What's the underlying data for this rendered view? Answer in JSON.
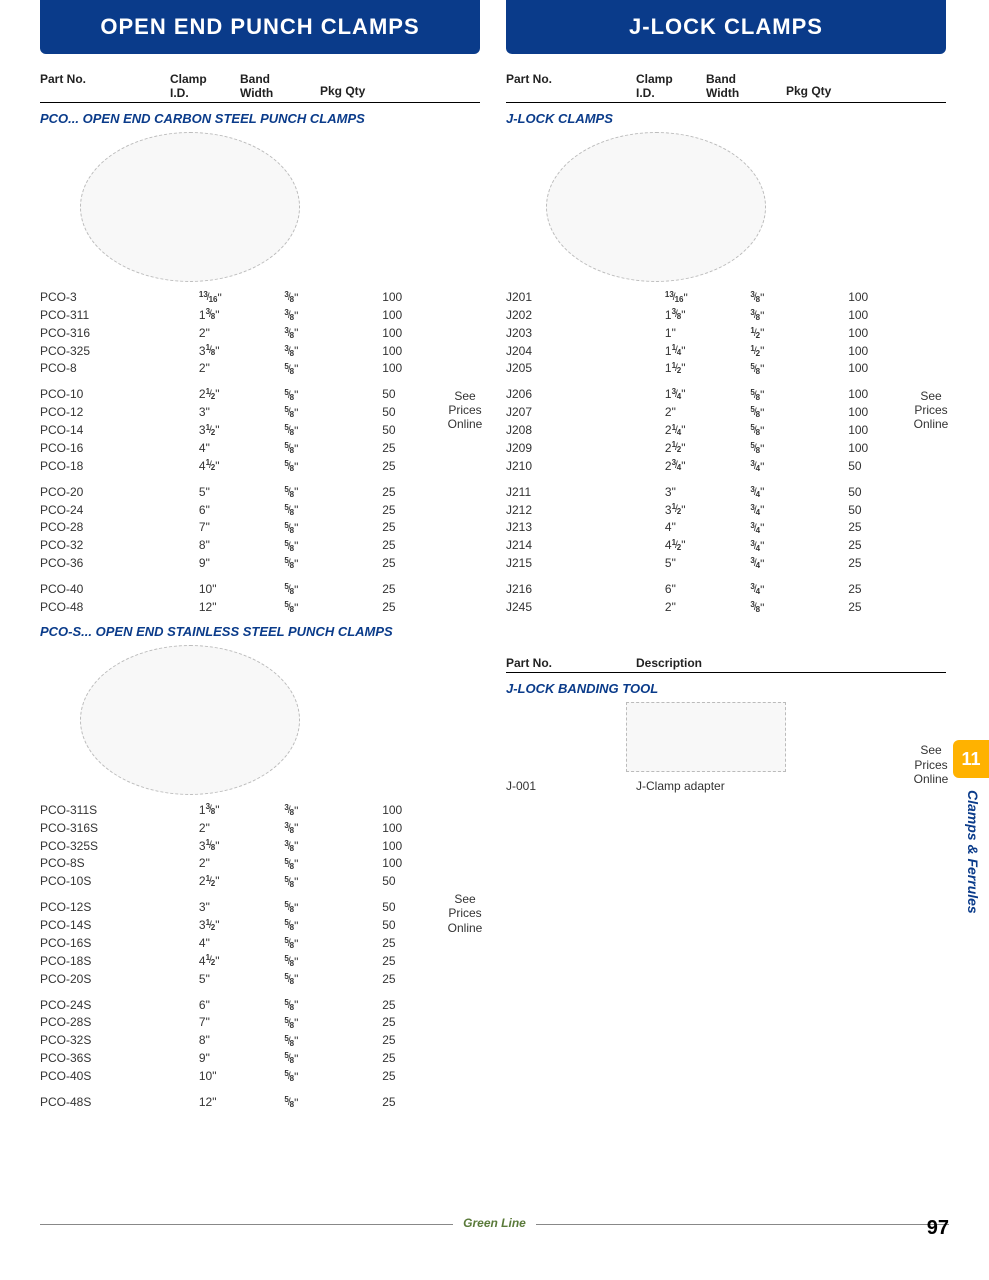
{
  "brand_color": "#0a3b8a",
  "accent_color": "#ffb200",
  "page_number": "97",
  "footer_brand": "Green Line",
  "side_tab": "11",
  "side_label": "Clamps & Ferrules",
  "left": {
    "title": "OPEN END PUNCH CLAMPS",
    "headers": {
      "part": "Part No.",
      "id1": "Clamp",
      "id2": "I.D.",
      "band1": "Band",
      "band2": "Width",
      "qty": "Pkg Qty"
    },
    "see_prices": "See Prices Online",
    "sections": [
      {
        "subhead": "PCO... OPEN END CARBON STEEL PUNCH CLAMPS",
        "image": true,
        "see_prices_top": 380,
        "rows": [
          {
            "part": "PCO-3",
            "id": {
              "w": "",
              "n": "13",
              "d": "16"
            },
            "band": {
              "n": "3",
              "d": "8"
            },
            "qty": "100"
          },
          {
            "part": "PCO-311",
            "id": {
              "w": "1",
              "n": "3",
              "d": "8"
            },
            "band": {
              "n": "3",
              "d": "8"
            },
            "qty": "100"
          },
          {
            "part": "PCO-316",
            "id": {
              "w": "2"
            },
            "band": {
              "n": "3",
              "d": "8"
            },
            "qty": "100"
          },
          {
            "part": "PCO-325",
            "id": {
              "w": "3",
              "n": "1",
              "d": "8"
            },
            "band": {
              "n": "3",
              "d": "8"
            },
            "qty": "100"
          },
          {
            "part": "PCO-8",
            "id": {
              "w": "2"
            },
            "band": {
              "n": "5",
              "d": "8"
            },
            "qty": "100"
          },
          {
            "gap": true
          },
          {
            "part": "PCO-10",
            "id": {
              "w": "2",
              "n": "1",
              "d": "2"
            },
            "band": {
              "n": "5",
              "d": "8"
            },
            "qty": "50"
          },
          {
            "part": "PCO-12",
            "id": {
              "w": "3"
            },
            "band": {
              "n": "5",
              "d": "8"
            },
            "qty": "50"
          },
          {
            "part": "PCO-14",
            "id": {
              "w": "3",
              "n": "1",
              "d": "2"
            },
            "band": {
              "n": "5",
              "d": "8"
            },
            "qty": "50"
          },
          {
            "part": "PCO-16",
            "id": {
              "w": "4"
            },
            "band": {
              "n": "5",
              "d": "8"
            },
            "qty": "25"
          },
          {
            "part": "PCO-18",
            "id": {
              "w": "4",
              "n": "1",
              "d": "2"
            },
            "band": {
              "n": "5",
              "d": "8"
            },
            "qty": "25"
          },
          {
            "gap": true
          },
          {
            "part": "PCO-20",
            "id": {
              "w": "5"
            },
            "band": {
              "n": "5",
              "d": "8"
            },
            "qty": "25"
          },
          {
            "part": "PCO-24",
            "id": {
              "w": "6"
            },
            "band": {
              "n": "5",
              "d": "8"
            },
            "qty": "25"
          },
          {
            "part": "PCO-28",
            "id": {
              "w": "7"
            },
            "band": {
              "n": "5",
              "d": "8"
            },
            "qty": "25"
          },
          {
            "part": "PCO-32",
            "id": {
              "w": "8"
            },
            "band": {
              "n": "5",
              "d": "8"
            },
            "qty": "25"
          },
          {
            "part": "PCO-36",
            "id": {
              "w": "9"
            },
            "band": {
              "n": "5",
              "d": "8"
            },
            "qty": "25"
          },
          {
            "gap": true
          },
          {
            "part": "PCO-40",
            "id": {
              "w": "10"
            },
            "band": {
              "n": "5",
              "d": "8"
            },
            "qty": "25"
          },
          {
            "part": "PCO-48",
            "id": {
              "w": "12"
            },
            "band": {
              "n": "5",
              "d": "8"
            },
            "qty": "25"
          }
        ]
      },
      {
        "subhead": "PCO-S... OPEN END STAINLESS STEEL PUNCH CLAMPS",
        "image": true,
        "see_prices_top": 860,
        "rows": [
          {
            "part": "PCO-311S",
            "id": {
              "w": "1",
              "n": "3",
              "d": "8"
            },
            "band": {
              "n": "3",
              "d": "8"
            },
            "qty": "100"
          },
          {
            "part": "PCO-316S",
            "id": {
              "w": "2"
            },
            "band": {
              "n": "3",
              "d": "8"
            },
            "qty": "100"
          },
          {
            "part": "PCO-325S",
            "id": {
              "w": "3",
              "n": "1",
              "d": "8"
            },
            "band": {
              "n": "3",
              "d": "8"
            },
            "qty": "100"
          },
          {
            "part": "PCO-8S",
            "id": {
              "w": "2"
            },
            "band": {
              "n": "5",
              "d": "8"
            },
            "qty": "100"
          },
          {
            "part": "PCO-10S",
            "id": {
              "w": "2",
              "n": "1",
              "d": "2"
            },
            "band": {
              "n": "5",
              "d": "8"
            },
            "qty": "50"
          },
          {
            "gap": true
          },
          {
            "part": "PCO-12S",
            "id": {
              "w": "3"
            },
            "band": {
              "n": "5",
              "d": "8"
            },
            "qty": "50"
          },
          {
            "part": "PCO-14S",
            "id": {
              "w": "3",
              "n": "1",
              "d": "2"
            },
            "band": {
              "n": "5",
              "d": "8"
            },
            "qty": "50"
          },
          {
            "part": "PCO-16S",
            "id": {
              "w": "4"
            },
            "band": {
              "n": "5",
              "d": "8"
            },
            "qty": "25"
          },
          {
            "part": "PCO-18S",
            "id": {
              "w": "4",
              "n": "1",
              "d": "2"
            },
            "band": {
              "n": "5",
              "d": "8"
            },
            "qty": "25"
          },
          {
            "part": "PCO-20S",
            "id": {
              "w": "5"
            },
            "band": {
              "n": "5",
              "d": "8"
            },
            "qty": "25"
          },
          {
            "gap": true
          },
          {
            "part": "PCO-24S",
            "id": {
              "w": "6"
            },
            "band": {
              "n": "5",
              "d": "8"
            },
            "qty": "25"
          },
          {
            "part": "PCO-28S",
            "id": {
              "w": "7"
            },
            "band": {
              "n": "5",
              "d": "8"
            },
            "qty": "25"
          },
          {
            "part": "PCO-32S",
            "id": {
              "w": "8"
            },
            "band": {
              "n": "5",
              "d": "8"
            },
            "qty": "25"
          },
          {
            "part": "PCO-36S",
            "id": {
              "w": "9"
            },
            "band": {
              "n": "5",
              "d": "8"
            },
            "qty": "25"
          },
          {
            "part": "PCO-40S",
            "id": {
              "w": "10"
            },
            "band": {
              "n": "5",
              "d": "8"
            },
            "qty": "25"
          },
          {
            "gap": true
          },
          {
            "part": "PCO-48S",
            "id": {
              "w": "12"
            },
            "band": {
              "n": "5",
              "d": "8"
            },
            "qty": "25"
          }
        ]
      }
    ]
  },
  "right": {
    "title": "J-LOCK CLAMPS",
    "headers": {
      "part": "Part No.",
      "id1": "Clamp",
      "id2": "I.D.",
      "band1": "Band",
      "band2": "Width",
      "qty": "Pkg Qty"
    },
    "see_prices": "See Prices Online",
    "section1": {
      "subhead": "J-LOCK CLAMPS",
      "image": true,
      "see_prices_top": 430,
      "rows": [
        {
          "part": "J201",
          "id": {
            "w": "",
            "n": "13",
            "d": "16"
          },
          "band": {
            "n": "3",
            "d": "8"
          },
          "qty": "100"
        },
        {
          "part": "J202",
          "id": {
            "w": "1",
            "n": "3",
            "d": "8"
          },
          "band": {
            "n": "3",
            "d": "8"
          },
          "qty": "100"
        },
        {
          "part": "J203",
          "id": {
            "w": "1"
          },
          "band": {
            "n": "1",
            "d": "2"
          },
          "qty": "100"
        },
        {
          "part": "J204",
          "id": {
            "w": "1",
            "n": "1",
            "d": "4"
          },
          "band": {
            "n": "1",
            "d": "2"
          },
          "qty": "100"
        },
        {
          "part": "J205",
          "id": {
            "w": "1",
            "n": "1",
            "d": "2"
          },
          "band": {
            "n": "5",
            "d": "8"
          },
          "qty": "100"
        },
        {
          "gap": true
        },
        {
          "part": "J206",
          "id": {
            "w": "1",
            "n": "3",
            "d": "4"
          },
          "band": {
            "n": "5",
            "d": "8"
          },
          "qty": "100"
        },
        {
          "part": "J207",
          "id": {
            "w": "2"
          },
          "band": {
            "n": "5",
            "d": "8"
          },
          "qty": "100"
        },
        {
          "part": "J208",
          "id": {
            "w": "2",
            "n": "1",
            "d": "4"
          },
          "band": {
            "n": "5",
            "d": "8"
          },
          "qty": "100"
        },
        {
          "part": "J209",
          "id": {
            "w": "2",
            "n": "1",
            "d": "2"
          },
          "band": {
            "n": "5",
            "d": "8"
          },
          "qty": "100"
        },
        {
          "part": "J210",
          "id": {
            "w": "2",
            "n": "3",
            "d": "4"
          },
          "band": {
            "n": "3",
            "d": "4"
          },
          "qty": "50"
        },
        {
          "gap": true
        },
        {
          "part": "J211",
          "id": {
            "w": "3"
          },
          "band": {
            "n": "3",
            "d": "4"
          },
          "qty": "50"
        },
        {
          "part": "J212",
          "id": {
            "w": "3",
            "n": "1",
            "d": "2"
          },
          "band": {
            "n": "3",
            "d": "4"
          },
          "qty": "50"
        },
        {
          "part": "J213",
          "id": {
            "w": "4"
          },
          "band": {
            "n": "3",
            "d": "4"
          },
          "qty": "25"
        },
        {
          "part": "J214",
          "id": {
            "w": "4",
            "n": "1",
            "d": "2"
          },
          "band": {
            "n": "3",
            "d": "4"
          },
          "qty": "25"
        },
        {
          "part": "J215",
          "id": {
            "w": "5"
          },
          "band": {
            "n": "3",
            "d": "4"
          },
          "qty": "25"
        },
        {
          "gap": true
        },
        {
          "part": "J216",
          "id": {
            "w": "6"
          },
          "band": {
            "n": "3",
            "d": "4"
          },
          "qty": "25"
        },
        {
          "part": "J245",
          "id": {
            "w": "2"
          },
          "band": {
            "n": "3",
            "d": "8"
          },
          "qty": "25"
        }
      ]
    },
    "headers2": {
      "part": "Part No.",
      "desc": "Description"
    },
    "section2": {
      "subhead": "J-LOCK BANDING TOOL",
      "image": true,
      "see_prices_top": 840,
      "rows": [
        {
          "part": "J-001",
          "desc": "J-Clamp adapter"
        }
      ]
    }
  }
}
